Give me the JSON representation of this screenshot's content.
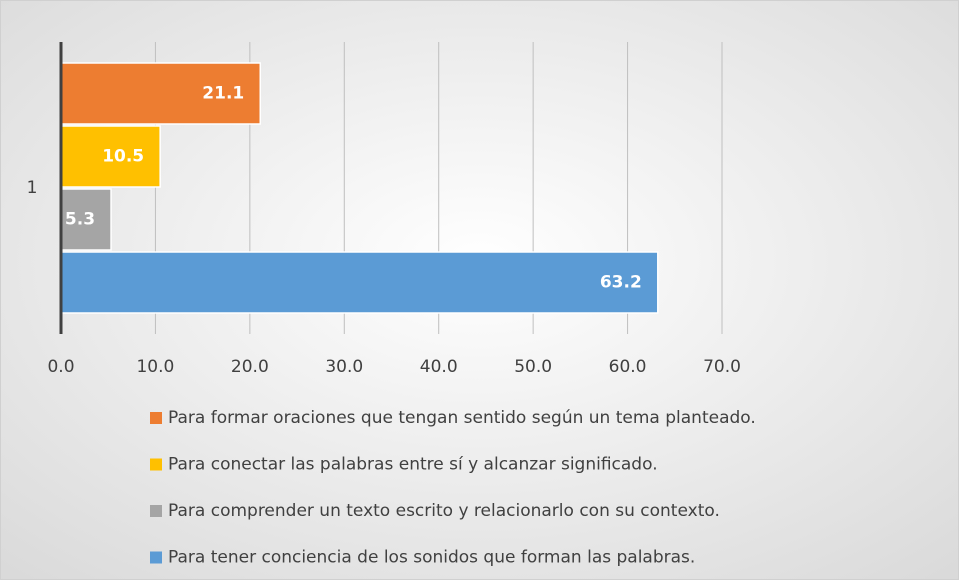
{
  "chart_data": {
    "type": "hbar",
    "categories": [
      "1"
    ],
    "series": [
      {
        "name": "Para formar oraciones que tengan sentido según un tema planteado.",
        "color": "#ed7d31",
        "values": [
          21.1
        ]
      },
      {
        "name": "Para conectar las palabras entre sí y alcanzar significado.",
        "color": "#ffc000",
        "values": [
          10.5
        ]
      },
      {
        "name": "Para comprender un texto escrito y relacionarlo con su contexto.",
        "color": "#a5a5a5",
        "values": [
          5.3
        ]
      },
      {
        "name": "Para tener conciencia de los sonidos que forman las palabras.",
        "color": "#5b9bd5",
        "values": [
          63.2
        ]
      }
    ],
    "xlim": [
      0,
      70
    ],
    "xticks": [
      {
        "value": 0,
        "label": "0.0"
      },
      {
        "value": 10,
        "label": "10.0"
      },
      {
        "value": 20,
        "label": "20.0"
      },
      {
        "value": 30,
        "label": "30.0"
      },
      {
        "value": 40,
        "label": "40.0"
      },
      {
        "value": 50,
        "label": "50.0"
      },
      {
        "value": 60,
        "label": "60.0"
      },
      {
        "value": 70,
        "label": "70.0"
      }
    ],
    "grid": true,
    "legend": "bottom"
  }
}
